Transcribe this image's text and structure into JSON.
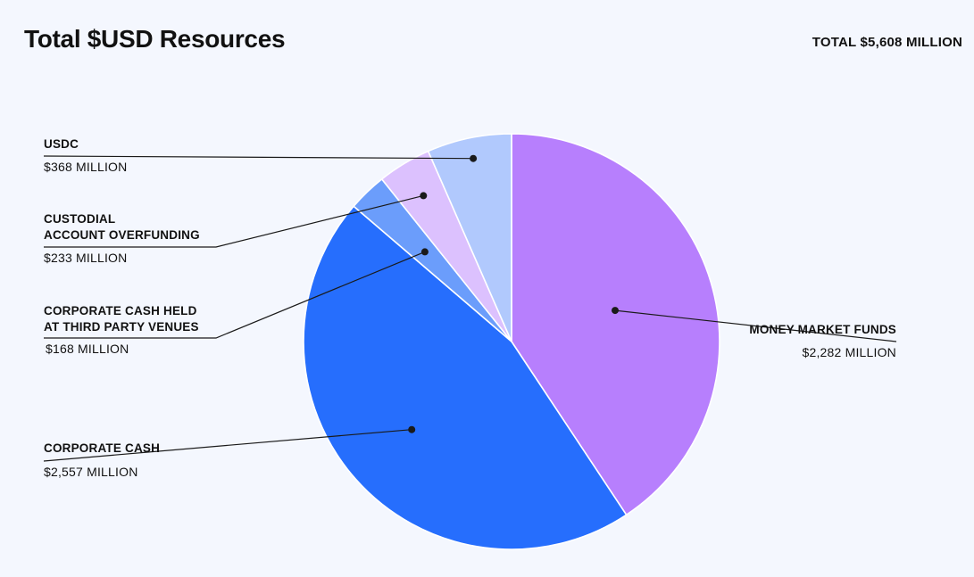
{
  "header": {
    "title": "Total $USD Resources",
    "total": "TOTAL $5,608 MILLION"
  },
  "colors": {
    "background": "#f4f7fe",
    "leader": "#1a1a1a"
  },
  "chart_data": {
    "type": "pie",
    "title": "Total $USD Resources",
    "units": "USD millions",
    "total": 5608,
    "start_at": "12 o'clock, clockwise",
    "slices": [
      {
        "name": "MONEY MARKET FUNDS",
        "value": 2282,
        "value_label": "$2,282 MILLION",
        "color": "#b77ffd"
      },
      {
        "name": "CORPORATE CASH",
        "value": 2557,
        "value_label": "$2,557 MILLION",
        "color": "#266efd"
      },
      {
        "name": "CORPORATE CASH HELD AT THIRD PARTY VENUES",
        "name_lines": [
          "CORPORATE CASH HELD",
          "AT THIRD PARTY VENUES"
        ],
        "value": 168,
        "value_label": "$168 MILLION",
        "color": "#6b9dfb"
      },
      {
        "name": "CUSTODIAL ACCOUNT OVERFUNDING",
        "name_lines": [
          "CUSTODIAL",
          "ACCOUNT OVERFUNDING"
        ],
        "value": 233,
        "value_label": "$233 MILLION",
        "color": "#dcc1fe"
      },
      {
        "name": "USDC",
        "value": 368,
        "value_label": "$368 MILLION",
        "color": "#b1c9fd"
      }
    ]
  }
}
